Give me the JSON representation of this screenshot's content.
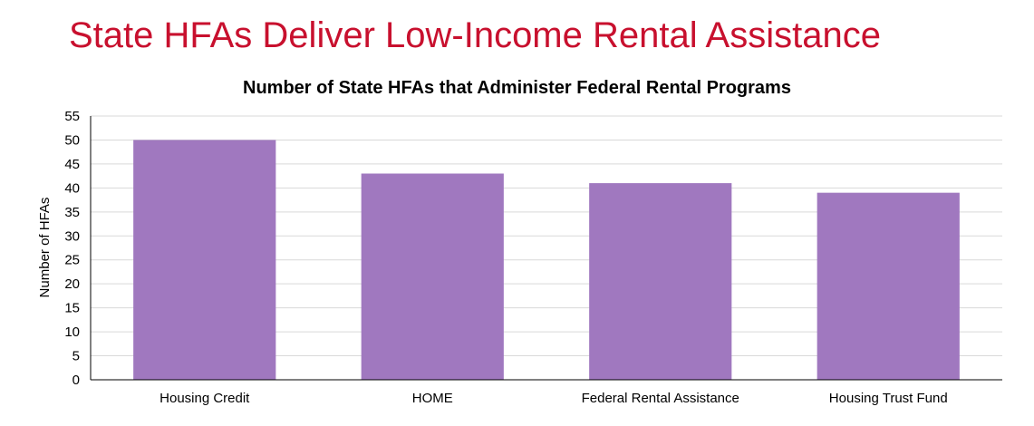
{
  "slide": {
    "title": "State HFAs Deliver Low-Income Rental Assistance"
  },
  "colors": {
    "title": "#c8102e",
    "bar": "#a078bf",
    "gridline": "#d9d9d9",
    "axis": "#000000"
  },
  "chart_data": {
    "type": "bar",
    "title": "Number of State HFAs that Administer Federal Rental Programs",
    "xlabel": "",
    "ylabel": "Number of HFAs",
    "categories": [
      "Housing Credit",
      "HOME",
      "Federal Rental Assistance",
      "Housing Trust Fund"
    ],
    "values": [
      50,
      43,
      41,
      39
    ],
    "ylim": [
      0,
      55
    ],
    "yticks": [
      0,
      5,
      10,
      15,
      20,
      25,
      30,
      35,
      40,
      45,
      50,
      55
    ],
    "grid": true,
    "legend": "none"
  }
}
